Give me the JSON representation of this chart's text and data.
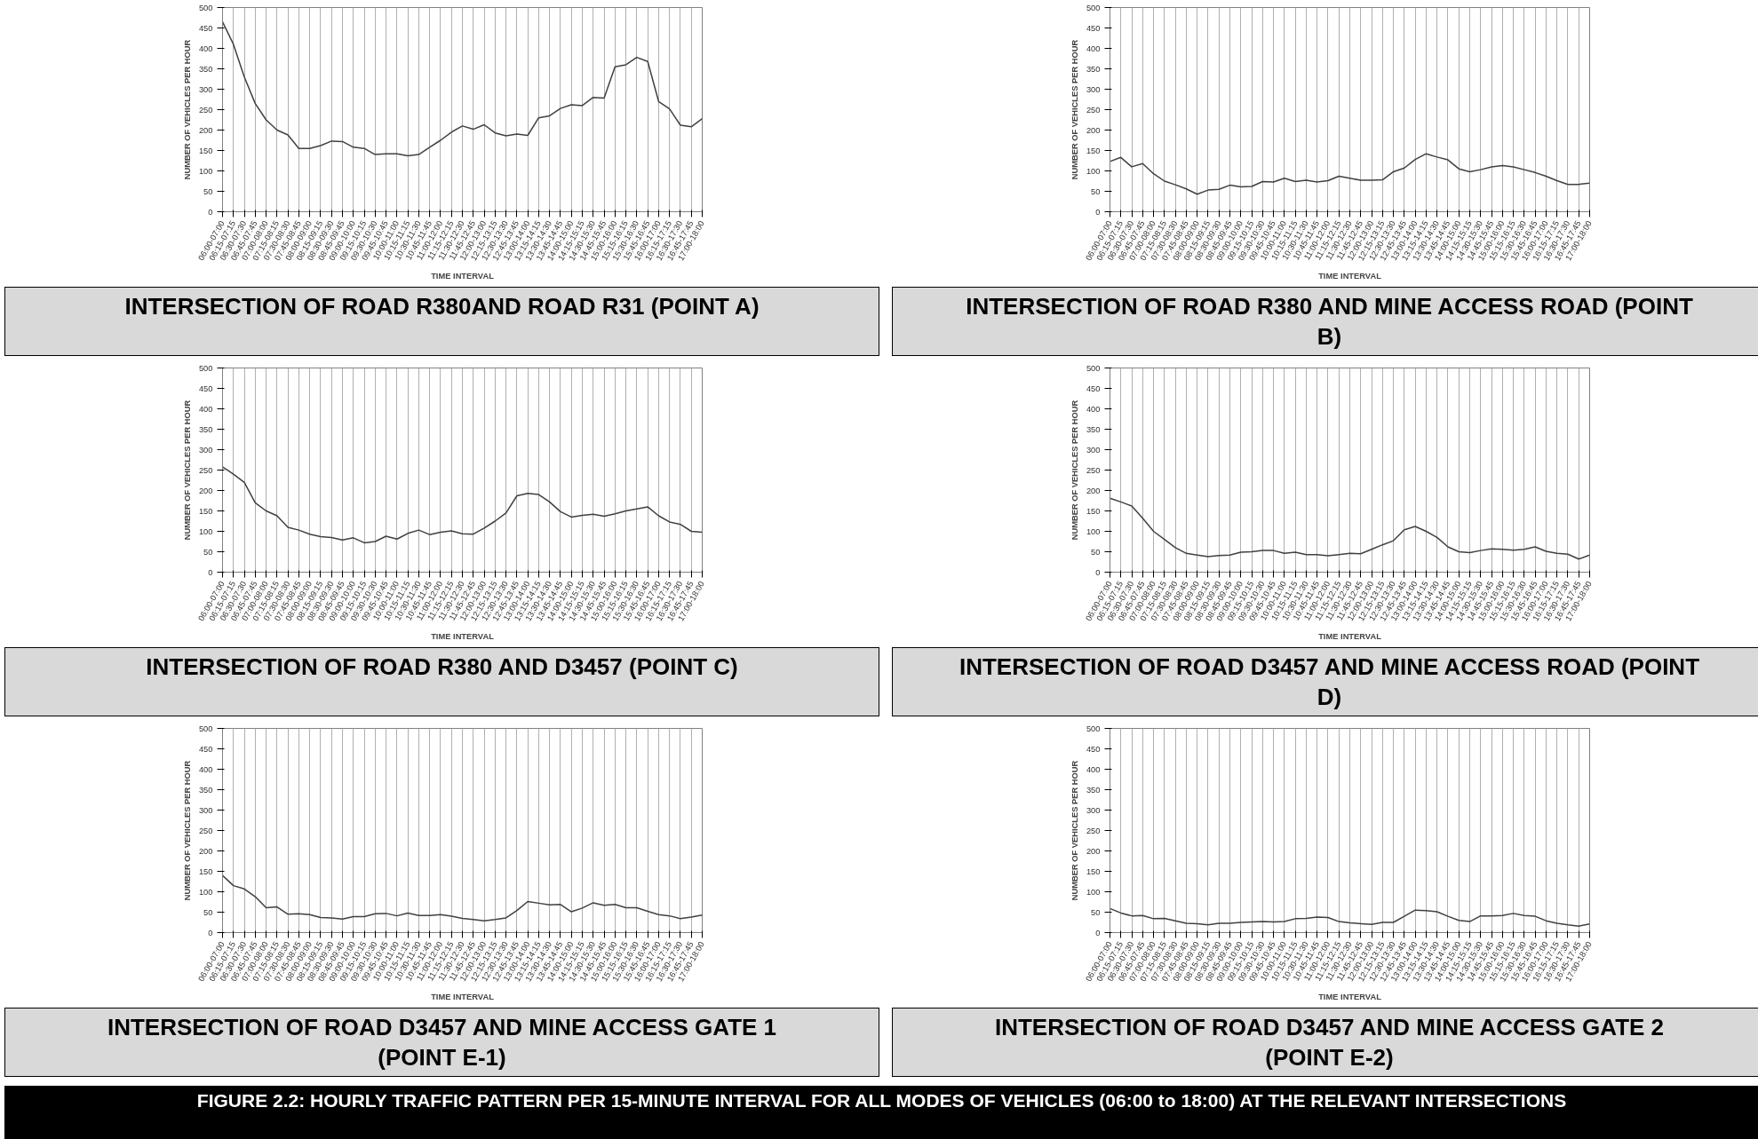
{
  "chart_data": [
    {
      "type": "line",
      "title": "INTERSECTION OF ROAD R380AND ROAD R31 (POINT A)",
      "xlabel": "TIME INTERVAL",
      "ylabel": "NUMBER OF VEHICLES PER HOUR",
      "ylim": [
        0,
        500
      ],
      "yticks": [
        0,
        50,
        100,
        150,
        200,
        250,
        300,
        350,
        400,
        450,
        500
      ],
      "grid": "x",
      "marker": "none",
      "line_style": "solid",
      "categories": [
        "06:00-07:00",
        "06:15-07:15",
        "06:30-07:30",
        "06:45-07:45",
        "07:00-08:00",
        "07:15-08:15",
        "07:30-08:30",
        "07:45-08:45",
        "08:00-09:00",
        "08:15-09:15",
        "08:30-09:30",
        "08:45-09:45",
        "09:00-10:00",
        "09:15-10:15",
        "09:30-10:30",
        "09:45-10:45",
        "10:00-11:00",
        "10:15-11:15",
        "10:30-11:30",
        "10:45-11:45",
        "11:00-12:00",
        "11:15-12:15",
        "11:30-12:30",
        "11:45-12:45",
        "12:00-13:00",
        "12:15-13:15",
        "12:30-13:30",
        "12:45-13:45",
        "13:00-14:00",
        "13:15-14:15",
        "13:30-14:30",
        "13:45-14:45",
        "14:00-15:00",
        "14:15-15:15",
        "14:30-15:30",
        "14:45-15:45",
        "15:00-16:00",
        "15:15-16:15",
        "15:30-16:30",
        "15:45-16:45",
        "16:00-17:00",
        "16:15-17:15",
        "16:30-17:30",
        "16:45-17:45",
        "17:00-18:00"
      ],
      "series": [
        {
          "color": "#404040",
          "values": [
            465,
            410,
            330,
            265,
            225,
            200,
            188,
            155,
            155,
            162,
            173,
            172,
            158,
            155,
            140,
            142,
            142,
            137,
            140,
            158,
            175,
            195,
            210,
            202,
            213,
            193,
            186,
            190,
            187,
            230,
            235,
            253,
            262,
            260,
            280,
            278,
            355,
            360,
            378,
            368,
            270,
            252,
            212,
            208,
            228
          ]
        }
      ]
    },
    {
      "type": "line",
      "title": "INTERSECTION OF ROAD R380 AND MINE ACCESS ROAD (POINT B)",
      "xlabel": "TIME INTERVAL",
      "ylabel": "NUMBER OF VEHICLES PER HOUR",
      "ylim": [
        0,
        500
      ],
      "yticks": [
        0,
        50,
        100,
        150,
        200,
        250,
        300,
        350,
        400,
        450,
        500
      ],
      "grid": "x",
      "marker": "none",
      "line_style": "solid",
      "categories": [
        "06:00-07:00",
        "06:15-07:15",
        "06:30-07:30",
        "06:45-07:45",
        "07:00-08:00",
        "07:15-08:15",
        "07:30-08:30",
        "07:45-08:45",
        "08:00-09:00",
        "08:15-09:15",
        "08:30-09:30",
        "08:45-09:45",
        "09:00-10:00",
        "09:15-10:15",
        "09:30-10:30",
        "09:45-10:45",
        "10:00-11:00",
        "10:15-11:15",
        "10:30-11:30",
        "10:45-11:45",
        "11:00-12:00",
        "11:15-12:15",
        "11:30-12:30",
        "11:45-12:45",
        "12:00-13:00",
        "12:15-13:15",
        "12:30-13:30",
        "12:45-13:45",
        "13:00-14:00",
        "13:15-14:15",
        "13:30-14:30",
        "13:45-14:45",
        "14:00-15:00",
        "14:15-15:15",
        "14:30-15:30",
        "14:45-15:45",
        "15:00-16:00",
        "15:15-16:15",
        "15:30-16:30",
        "15:45-16:45",
        "16:00-17:00",
        "16:15-17:15",
        "16:30-17:30",
        "16:45-17:45",
        "17:00-18:00"
      ],
      "series": [
        {
          "color": "#404040",
          "values": [
            123,
            133,
            110,
            118,
            93,
            75,
            66,
            56,
            43,
            53,
            55,
            65,
            61,
            62,
            74,
            73,
            82,
            74,
            77,
            73,
            76,
            87,
            82,
            77,
            77,
            78,
            98,
            107,
            128,
            142,
            134,
            127,
            105,
            98,
            103,
            110,
            113,
            110,
            103,
            96,
            87,
            76,
            67,
            67,
            70
          ]
        }
      ]
    },
    {
      "type": "line",
      "title": "INTERSECTION OF ROAD R380 AND D3457 (POINT C)",
      "xlabel": "TIME INTERVAL",
      "ylabel": "NUMBER OF VEHICLES PER HOUR",
      "ylim": [
        0,
        500
      ],
      "yticks": [
        0,
        50,
        100,
        150,
        200,
        250,
        300,
        350,
        400,
        450,
        500
      ],
      "grid": "x",
      "marker": "none",
      "line_style": "solid",
      "categories": [
        "06:00-07:00",
        "06:15-07:15",
        "06:30-07:30",
        "06:45-07:45",
        "07:00-08:00",
        "07:15-08:15",
        "07:30-08:30",
        "07:45-08:45",
        "08:00-09:00",
        "08:15-09:15",
        "08:30-09:30",
        "08:45-09:45",
        "09:00-10:00",
        "09:15-10:15",
        "09:30-10:30",
        "09:45-10:45",
        "10:00-11:00",
        "10:15-11:15",
        "10:30-11:30",
        "10:45-11:45",
        "11:00-12:00",
        "11:15-12:15",
        "11:30-12:30",
        "11:45-12:45",
        "12:00-13:00",
        "12:15-13:15",
        "12:30-13:30",
        "12:45-13:45",
        "13:00-14:00",
        "13:15-14:15",
        "13:30-14:30",
        "13:45-14:45",
        "14:00-15:00",
        "14:15-15:15",
        "14:30-15:30",
        "14:45-15:45",
        "15:00-16:00",
        "15:15-16:15",
        "15:30-16:30",
        "15:45-16:45",
        "16:00-17:00",
        "16:15-17:15",
        "16:30-17:30",
        "16:45-17:45",
        "17:00-18:00"
      ],
      "series": [
        {
          "color": "#404040",
          "values": [
            258,
            240,
            220,
            170,
            150,
            138,
            110,
            103,
            93,
            87,
            85,
            79,
            84,
            72,
            75,
            88,
            81,
            95,
            103,
            92,
            98,
            101,
            94,
            93,
            108,
            125,
            145,
            187,
            193,
            190,
            172,
            148,
            135,
            139,
            142,
            137,
            143,
            150,
            155,
            160,
            138,
            123,
            117,
            100,
            98
          ]
        }
      ]
    },
    {
      "type": "line",
      "title": "INTERSECTION OF ROAD D3457 AND MINE ACCESS ROAD (POINT D)",
      "xlabel": "TIME INTERVAL",
      "ylabel": "NUMBER OF VEHICLES PER HOUR",
      "ylim": [
        0,
        500
      ],
      "yticks": [
        0,
        50,
        100,
        150,
        200,
        250,
        300,
        350,
        400,
        450,
        500
      ],
      "grid": "x",
      "marker": "none",
      "line_style": "solid",
      "categories": [
        "06:00-07:00",
        "06:15-07:15",
        "06:30-07:30",
        "06:45-07:45",
        "07:00-08:00",
        "07:15-08:15",
        "07:30-08:30",
        "07:45-08:45",
        "08:00-09:00",
        "08:15-09:15",
        "08:30-09:30",
        "08:45-09:45",
        "09:00-10:00",
        "09:15-10:15",
        "09:30-10:30",
        "09:45-10:45",
        "10:00-11:00",
        "10:15-11:15",
        "10:30-11:30",
        "10:45-11:45",
        "11:00-12:00",
        "11:15-12:15",
        "11:30-12:30",
        "11:45-12:45",
        "12:00-13:00",
        "12:15-13:15",
        "12:30-13:30",
        "12:45-13:45",
        "13:00-14:00",
        "13:15-14:15",
        "13:30-14:30",
        "13:45-14:45",
        "14:00-15:00",
        "14:15-15:15",
        "14:30-15:30",
        "14:45-15:45",
        "15:00-16:00",
        "15:15-16:15",
        "15:30-16:30",
        "15:45-16:45",
        "16:00-17:00",
        "16:15-17:15",
        "16:30-17:30",
        "16:45-17:45",
        "17:00-18:00"
      ],
      "series": [
        {
          "color": "#404040",
          "values": [
            181,
            172,
            162,
            132,
            100,
            80,
            60,
            46,
            42,
            38,
            41,
            42,
            49,
            50,
            53,
            53,
            46,
            49,
            43,
            43,
            40,
            43,
            46,
            45,
            56,
            67,
            77,
            104,
            112,
            100,
            85,
            62,
            50,
            48,
            53,
            57,
            56,
            54,
            56,
            62,
            51,
            46,
            44,
            32,
            42
          ]
        }
      ]
    },
    {
      "type": "line",
      "title": "INTERSECTION OF ROAD D3457 AND MINE ACCESS GATE 1 (POINT E-1)",
      "xlabel": "TIME INTERVAL",
      "ylabel": "NUMBER OF VEHICLES PER HOUR",
      "ylim": [
        0,
        500
      ],
      "yticks": [
        0,
        50,
        100,
        150,
        200,
        250,
        300,
        350,
        400,
        450,
        500
      ],
      "grid": "x",
      "marker": "none",
      "line_style": "solid",
      "categories": [
        "06:00-07:00",
        "06:15-07:15",
        "06:30-07:30",
        "06:45-07:45",
        "07:00-08:00",
        "07:15-08:15",
        "07:30-08:30",
        "07:45-08:45",
        "08:00-09:00",
        "08:15-09:15",
        "08:30-09:30",
        "08:45-09:45",
        "09:00-10:00",
        "09:15-10:15",
        "09:30-10:30",
        "09:45-10:45",
        "10:00-11:00",
        "10:15-11:15",
        "10:30-11:30",
        "10:45-11:45",
        "11:00-12:00",
        "11:15-12:15",
        "11:30-12:30",
        "11:45-12:45",
        "12:00-13:00",
        "12:15-13:15",
        "12:30-13:30",
        "12:45-13:45",
        "13:00-14:00",
        "13:15-14:15",
        "13:30-14:30",
        "13:45-14:45",
        "14:00-15:00",
        "14:15-15:15",
        "14:30-15:30",
        "14:45-15:45",
        "15:00-16:00",
        "15:15-16:15",
        "15:30-16:30",
        "15:45-16:45",
        "16:00-17:00",
        "16:15-17:15",
        "16:30-17:30",
        "16:45-17:45",
        "17:00-18:00"
      ],
      "series": [
        {
          "color": "#404040",
          "values": [
            140,
            115,
            107,
            88,
            61,
            63,
            45,
            46,
            44,
            37,
            36,
            33,
            39,
            39,
            46,
            47,
            41,
            48,
            42,
            42,
            44,
            40,
            35,
            32,
            29,
            32,
            36,
            54,
            76,
            72,
            68,
            69,
            51,
            60,
            73,
            67,
            69,
            61,
            61,
            52,
            44,
            41,
            34,
            38,
            43
          ]
        }
      ]
    },
    {
      "type": "line",
      "title": "INTERSECTION OF ROAD D3457 AND MINE ACCESS GATE 2 (POINT E-2)",
      "xlabel": "TIME INTERVAL",
      "ylabel": "NUMBER OF VEHICLES PER HOUR",
      "ylim": [
        0,
        500
      ],
      "yticks": [
        0,
        50,
        100,
        150,
        200,
        250,
        300,
        350,
        400,
        450,
        500
      ],
      "grid": "x",
      "marker": "none",
      "line_style": "solid",
      "annotations": [
        "FIGURE 2.2: HOURLY TRAFFIC PATTERN PER 15-MINUTE INTERVAL FOR ALL MODES OF VEHICLES (06:00 to 18:00) AT THE RELEVANT INTERSECTIONS"
      ],
      "categories": [
        "06:00-07:00",
        "06:15-07:15",
        "06:30-07:30",
        "06:45-07:45",
        "07:00-08:00",
        "07:15-08:15",
        "07:30-08:30",
        "07:45-08:45",
        "08:00-09:00",
        "08:15-09:15",
        "08:30-09:30",
        "08:45-09:45",
        "09:00-10:00",
        "09:15-10:15",
        "09:30-10:30",
        "09:45-10:45",
        "10:00-11:00",
        "10:15-11:15",
        "10:30-11:30",
        "10:45-11:45",
        "11:00-12:00",
        "11:15-12:15",
        "11:30-12:30",
        "11:45-12:45",
        "12:00-13:00",
        "12:15-13:15",
        "12:30-13:30",
        "12:45-13:45",
        "13:00-14:00",
        "13:15-14:15",
        "13:30-14:30",
        "13:45-14:45",
        "14:00-15:00",
        "14:15-15:15",
        "14:30-15:30",
        "14:45-15:45",
        "15:00-16:00",
        "15:15-16:15",
        "15:30-16:30",
        "15:45-16:45",
        "16:00-17:00",
        "16:15-17:15",
        "16:30-17:30",
        "16:45-17:45",
        "17:00-18:00"
      ],
      "series": [
        {
          "color": "#404040",
          "values": [
            59,
            48,
            41,
            42,
            34,
            35,
            29,
            23,
            22,
            19,
            23,
            23,
            25,
            26,
            27,
            26,
            27,
            34,
            35,
            38,
            37,
            27,
            24,
            22,
            20,
            25,
            25,
            40,
            55,
            54,
            51,
            40,
            30,
            27,
            41,
            41,
            42,
            47,
            42,
            40,
            29,
            23,
            19,
            16,
            21
          ]
        }
      ]
    }
  ]
}
